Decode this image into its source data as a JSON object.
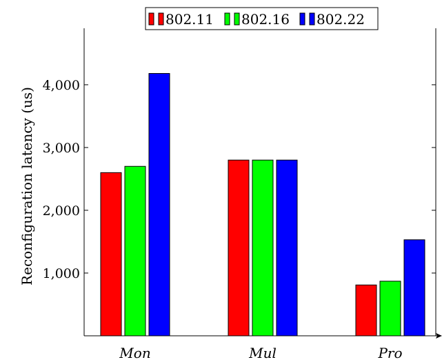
{
  "chart_data": {
    "type": "bar",
    "title": "",
    "xlabel": "",
    "ylabel": "Reconfiguration latency (us)",
    "categories": [
      "Mon",
      "Mul",
      "Pro"
    ],
    "series": [
      {
        "name": "802.11",
        "color": "#ff0000",
        "values": [
          2600,
          2800,
          810
        ]
      },
      {
        "name": "802.16",
        "color": "#00ff00",
        "values": [
          2700,
          2800,
          870
        ]
      },
      {
        "name": "802.22",
        "color": "#0000ff",
        "values": [
          4180,
          2800,
          1530
        ]
      }
    ],
    "ylim": [
      0,
      4900
    ],
    "yticks": [
      1000,
      2000,
      3000,
      4000
    ],
    "ytick_labels": [
      "1,000",
      "2,000",
      "3,000",
      "4,000"
    ],
    "grid": false,
    "legend_position": "top-center"
  }
}
